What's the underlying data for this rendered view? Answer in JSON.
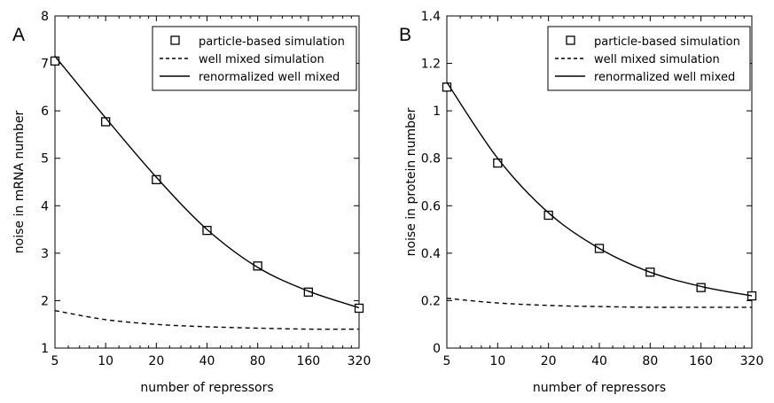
{
  "chart_data": [
    {
      "type": "line",
      "panel_label": "A",
      "xscale": "log2",
      "xlabel": "number of repressors",
      "ylabel": "noise in mRNA number",
      "xticks": [
        5,
        10,
        20,
        40,
        80,
        160,
        320
      ],
      "xtick_labels": [
        "5",
        "10",
        "20",
        "40",
        "80",
        "160",
        "320"
      ],
      "yticks": [
        1,
        2,
        3,
        4,
        5,
        6,
        7,
        8
      ],
      "ytick_labels": [
        "1",
        "2",
        "3",
        "4",
        "5",
        "6",
        "7",
        "8"
      ],
      "xlim": [
        5,
        320
      ],
      "ylim": [
        1,
        8
      ],
      "legend": {
        "position": "top-right",
        "entries": [
          "particle-based simulation",
          "well mixed simulation",
          "renormalized well mixed"
        ]
      },
      "series": [
        {
          "name": "particle-based simulation",
          "style": "markers-square",
          "x": [
            5,
            10,
            20,
            40,
            80,
            160,
            320
          ],
          "y": [
            7.05,
            5.77,
            4.55,
            3.48,
            2.73,
            2.18,
            1.84
          ]
        },
        {
          "name": "well mixed simulation",
          "style": "dashed",
          "x": [
            5,
            10,
            20,
            40,
            80,
            160,
            320
          ],
          "y": [
            1.79,
            1.6,
            1.5,
            1.45,
            1.42,
            1.4,
            1.4
          ]
        },
        {
          "name": "renormalized well mixed",
          "style": "solid",
          "x": [
            5,
            10,
            20,
            40,
            80,
            160,
            320
          ],
          "y": [
            7.15,
            5.85,
            4.6,
            3.5,
            2.7,
            2.2,
            1.85
          ]
        }
      ]
    },
    {
      "type": "line",
      "panel_label": "B",
      "xscale": "log2",
      "xlabel": "number of repressors",
      "ylabel": "noise in protein number",
      "xticks": [
        5,
        10,
        20,
        40,
        80,
        160,
        320
      ],
      "xtick_labels": [
        "5",
        "10",
        "20",
        "40",
        "80",
        "160",
        "320"
      ],
      "yticks": [
        0,
        0.2,
        0.4,
        0.6,
        0.8,
        1,
        1.2,
        1.4
      ],
      "ytick_labels": [
        "0",
        "0.2",
        "0.4",
        "0.6",
        "0.8",
        "1",
        "1.2",
        "1.4"
      ],
      "xlim": [
        5,
        320
      ],
      "ylim": [
        0,
        1.4
      ],
      "legend": {
        "position": "top-right",
        "entries": [
          "particle-based simulation",
          "well mixed simulation",
          "renormalized well mixed"
        ]
      },
      "series": [
        {
          "name": "particle-based simulation",
          "style": "markers-square",
          "x": [
            5,
            10,
            20,
            40,
            80,
            160,
            320
          ],
          "y": [
            1.1,
            0.78,
            0.56,
            0.42,
            0.32,
            0.255,
            0.22
          ]
        },
        {
          "name": "well mixed simulation",
          "style": "dashed",
          "x": [
            5,
            10,
            20,
            40,
            80,
            160,
            320
          ],
          "y": [
            0.21,
            0.19,
            0.18,
            0.175,
            0.172,
            0.172,
            0.172
          ]
        },
        {
          "name": "renormalized well mixed",
          "style": "solid",
          "x": [
            5,
            10,
            20,
            40,
            80,
            160,
            320
          ],
          "y": [
            1.12,
            0.8,
            0.57,
            0.42,
            0.32,
            0.26,
            0.22
          ]
        }
      ]
    }
  ]
}
